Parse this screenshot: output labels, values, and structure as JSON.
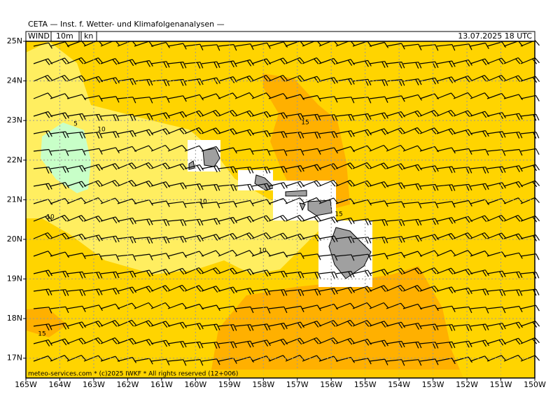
{
  "header": {
    "title": "CETA — Inst. f. Wetter- und Klimafolgenanalysen —",
    "parameter": "WIND",
    "level": "10m",
    "unit": "kn",
    "valid_time": "13.07.2025 18 UTC"
  },
  "axes": {
    "lat_range": [
      16.5,
      25
    ],
    "lon_range": [
      -165,
      -150
    ],
    "lat_ticks": [
      {
        "value": 25,
        "label": "25N"
      },
      {
        "value": 24,
        "label": "24N"
      },
      {
        "value": 23,
        "label": "23N"
      },
      {
        "value": 22,
        "label": "22N"
      },
      {
        "value": 21,
        "label": "21N"
      },
      {
        "value": 20,
        "label": "20N"
      },
      {
        "value": 19,
        "label": "19N"
      },
      {
        "value": 18,
        "label": "18N"
      },
      {
        "value": 17,
        "label": "17N"
      }
    ],
    "lon_ticks": [
      {
        "value": -165,
        "label": "165W"
      },
      {
        "value": -164,
        "label": "164W"
      },
      {
        "value": -163,
        "label": "163W"
      },
      {
        "value": -162,
        "label": "162W"
      },
      {
        "value": -161,
        "label": "161W"
      },
      {
        "value": -160,
        "label": "160W"
      },
      {
        "value": -159,
        "label": "159W"
      },
      {
        "value": -158,
        "label": "158W"
      },
      {
        "value": -157,
        "label": "157W"
      },
      {
        "value": -156,
        "label": "156W"
      },
      {
        "value": -155,
        "label": "155W"
      },
      {
        "value": -154,
        "label": "154W"
      },
      {
        "value": -153,
        "label": "153W"
      },
      {
        "value": -152,
        "label": "152W"
      },
      {
        "value": -151,
        "label": "151W"
      },
      {
        "value": -150,
        "label": "150W"
      }
    ]
  },
  "contour_labels": [
    "5",
    "10",
    "15",
    "10",
    "10",
    "15",
    "10",
    "15"
  ],
  "footer": "meteo-services.com * (c)2025 IWKF * All rights reserved (12+006)"
}
